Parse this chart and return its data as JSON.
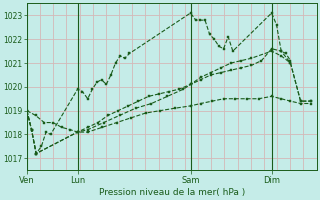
{
  "title": "Pression niveau de la mer( hPa )",
  "bg_color": "#c5ece8",
  "grid_color_h": "#d4b8b8",
  "grid_color_v": "#d4b8b8",
  "line_color": "#1a5c1a",
  "ylim": [
    1016.5,
    1023.5
  ],
  "yticks": [
    1017,
    1018,
    1019,
    1020,
    1021,
    1022,
    1023
  ],
  "day_labels": [
    "Ven",
    "Lun",
    "Sam",
    "Dim"
  ],
  "day_positions": [
    0.0,
    0.175,
    0.565,
    0.845
  ],
  "vline_positions": [
    0.0,
    0.175,
    0.565,
    0.845
  ],
  "xlim": [
    0,
    1.0
  ],
  "line1_x": [
    0.0,
    0.016,
    0.032,
    0.05,
    0.066,
    0.082,
    0.175,
    0.192,
    0.21,
    0.226,
    0.242,
    0.258,
    0.274,
    0.29,
    0.306,
    0.322,
    0.338,
    0.354,
    0.565,
    0.583,
    0.599,
    0.615,
    0.631,
    0.647,
    0.663,
    0.679,
    0.695,
    0.711,
    0.845,
    0.862,
    0.878,
    0.894,
    0.91
  ],
  "line1_y": [
    1019.0,
    1018.2,
    1017.2,
    1017.5,
    1018.1,
    1018.0,
    1019.9,
    1019.8,
    1019.5,
    1019.9,
    1020.2,
    1020.3,
    1020.1,
    1020.5,
    1021.0,
    1021.3,
    1021.2,
    1021.4,
    1023.1,
    1022.8,
    1022.8,
    1022.8,
    1022.2,
    1022.0,
    1021.7,
    1021.6,
    1022.1,
    1021.5,
    1023.1,
    1022.6,
    1021.5,
    1021.4,
    1021.1
  ],
  "line2_x": [
    0.0,
    0.016,
    0.032,
    0.175,
    0.21,
    0.245,
    0.28,
    0.315,
    0.35,
    0.385,
    0.42,
    0.455,
    0.49,
    0.525,
    0.565,
    0.6,
    0.635,
    0.67,
    0.705,
    0.74,
    0.775,
    0.81,
    0.845,
    0.878,
    0.91,
    0.945,
    0.98
  ],
  "line2_y": [
    1019.0,
    1018.2,
    1017.2,
    1018.1,
    1018.3,
    1018.5,
    1018.8,
    1019.0,
    1019.2,
    1019.4,
    1019.6,
    1019.7,
    1019.8,
    1019.9,
    1020.1,
    1020.3,
    1020.5,
    1020.6,
    1020.7,
    1020.8,
    1020.9,
    1021.1,
    1021.6,
    1021.5,
    1021.0,
    1019.4,
    1019.4
  ],
  "line3_x": [
    0.0,
    0.016,
    0.032,
    0.175,
    0.21,
    0.265,
    0.32,
    0.375,
    0.43,
    0.485,
    0.54,
    0.565,
    0.6,
    0.635,
    0.67,
    0.705,
    0.74,
    0.775,
    0.845,
    0.878,
    0.91,
    0.945,
    0.98
  ],
  "line3_y": [
    1019.0,
    1018.2,
    1017.2,
    1018.1,
    1018.2,
    1018.5,
    1018.8,
    1019.1,
    1019.3,
    1019.6,
    1019.9,
    1020.1,
    1020.4,
    1020.6,
    1020.8,
    1021.0,
    1021.1,
    1021.2,
    1021.5,
    1021.3,
    1021.0,
    1019.4,
    1019.4
  ],
  "line4_x": [
    0.0,
    0.03,
    0.06,
    0.09,
    0.12,
    0.15,
    0.175,
    0.21,
    0.26,
    0.31,
    0.36,
    0.41,
    0.46,
    0.51,
    0.565,
    0.6,
    0.64,
    0.68,
    0.72,
    0.76,
    0.8,
    0.845,
    0.878,
    0.91,
    0.945,
    0.98
  ],
  "line4_y": [
    1019.0,
    1018.8,
    1018.5,
    1018.5,
    1018.3,
    1018.2,
    1018.1,
    1018.1,
    1018.3,
    1018.5,
    1018.7,
    1018.9,
    1019.0,
    1019.1,
    1019.2,
    1019.3,
    1019.4,
    1019.5,
    1019.5,
    1019.5,
    1019.5,
    1019.6,
    1019.5,
    1019.4,
    1019.3,
    1019.3
  ]
}
